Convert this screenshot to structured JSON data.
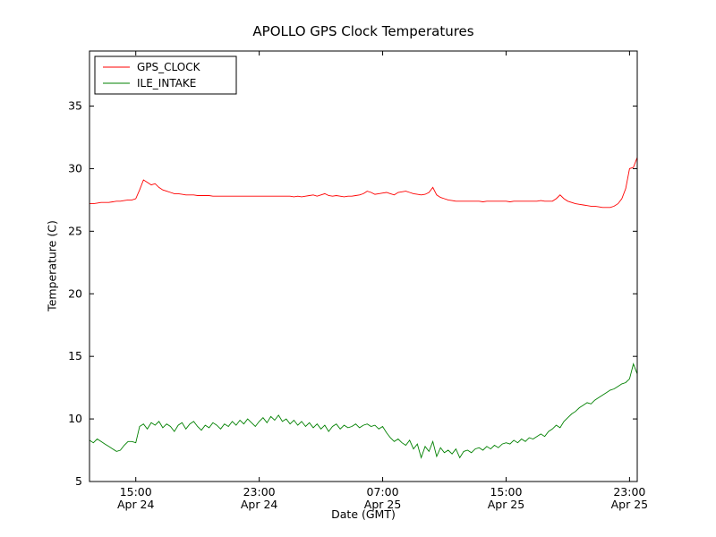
{
  "chart_data": {
    "type": "line",
    "title": "APOLLO GPS Clock Temperatures",
    "xlabel": "Date (GMT)",
    "ylabel": "Temperature (C)",
    "ylim": [
      5,
      39.4
    ],
    "xlim_hours": [
      0,
      35.5
    ],
    "x_axis_note": "hours since Apr 24 12:00 GMT",
    "grid": false,
    "legend_position": "upper left",
    "yticks": [
      5,
      10,
      15,
      20,
      25,
      30,
      35
    ],
    "xticks": [
      {
        "t": 3,
        "time": "15:00",
        "date": "Apr 24"
      },
      {
        "t": 11,
        "time": "23:00",
        "date": "Apr 24"
      },
      {
        "t": 19,
        "time": "07:00",
        "date": "Apr 25"
      },
      {
        "t": 27,
        "time": "15:00",
        "date": "Apr 25"
      },
      {
        "t": 35,
        "time": "23:00",
        "date": "Apr 25"
      }
    ],
    "series": [
      {
        "name": "GPS_CLOCK",
        "color": "#ff0000",
        "t_start": 0,
        "t_step": 0.25,
        "values": [
          27.2,
          27.2,
          27.25,
          27.3,
          27.3,
          27.3,
          27.35,
          27.4,
          27.4,
          27.45,
          27.5,
          27.5,
          27.6,
          28.3,
          29.1,
          28.9,
          28.7,
          28.8,
          28.5,
          28.3,
          28.2,
          28.1,
          28.0,
          28.0,
          27.95,
          27.9,
          27.9,
          27.9,
          27.85,
          27.85,
          27.85,
          27.85,
          27.8,
          27.8,
          27.8,
          27.8,
          27.8,
          27.8,
          27.8,
          27.8,
          27.8,
          27.8,
          27.8,
          27.8,
          27.8,
          27.8,
          27.8,
          27.8,
          27.8,
          27.8,
          27.8,
          27.8,
          27.8,
          27.75,
          27.8,
          27.75,
          27.8,
          27.85,
          27.9,
          27.8,
          27.9,
          28.0,
          27.85,
          27.8,
          27.85,
          27.8,
          27.75,
          27.8,
          27.8,
          27.85,
          27.9,
          28.0,
          28.2,
          28.1,
          27.95,
          28.0,
          28.05,
          28.1,
          28.0,
          27.9,
          28.1,
          28.15,
          28.2,
          28.1,
          28.0,
          27.95,
          27.9,
          27.95,
          28.1,
          28.5,
          27.9,
          27.7,
          27.6,
          27.5,
          27.45,
          27.4,
          27.4,
          27.4,
          27.4,
          27.4,
          27.4,
          27.4,
          27.35,
          27.4,
          27.4,
          27.4,
          27.4,
          27.4,
          27.4,
          27.35,
          27.4,
          27.4,
          27.4,
          27.4,
          27.4,
          27.4,
          27.4,
          27.45,
          27.4,
          27.4,
          27.4,
          27.6,
          27.9,
          27.6,
          27.4,
          27.3,
          27.2,
          27.15,
          27.1,
          27.05,
          27.0,
          27.0,
          26.95,
          26.9,
          26.9,
          26.9,
          27.0,
          27.2,
          27.6,
          28.4,
          30.0,
          30.1,
          30.9
        ]
      },
      {
        "name": "ILE_INTAKE",
        "color": "#008000",
        "t_start": 0,
        "t_step": 0.25,
        "values": [
          8.3,
          8.1,
          8.4,
          8.2,
          8.0,
          7.8,
          7.6,
          7.4,
          7.5,
          7.9,
          8.2,
          8.2,
          8.1,
          9.4,
          9.6,
          9.2,
          9.7,
          9.5,
          9.8,
          9.3,
          9.6,
          9.4,
          9.0,
          9.5,
          9.7,
          9.2,
          9.6,
          9.8,
          9.4,
          9.1,
          9.5,
          9.3,
          9.7,
          9.5,
          9.2,
          9.6,
          9.4,
          9.8,
          9.5,
          9.9,
          9.6,
          10.0,
          9.7,
          9.4,
          9.8,
          10.1,
          9.7,
          10.2,
          9.9,
          10.3,
          9.8,
          10.0,
          9.6,
          9.9,
          9.5,
          9.8,
          9.4,
          9.7,
          9.3,
          9.6,
          9.2,
          9.5,
          9.0,
          9.4,
          9.6,
          9.2,
          9.5,
          9.3,
          9.4,
          9.6,
          9.3,
          9.5,
          9.6,
          9.4,
          9.5,
          9.2,
          9.4,
          8.9,
          8.5,
          8.2,
          8.4,
          8.1,
          7.9,
          8.3,
          7.6,
          8.0,
          6.9,
          7.8,
          7.4,
          8.2,
          7.0,
          7.7,
          7.3,
          7.5,
          7.2,
          7.6,
          6.9,
          7.4,
          7.5,
          7.3,
          7.6,
          7.7,
          7.5,
          7.8,
          7.6,
          7.9,
          7.7,
          8.0,
          8.1,
          8.0,
          8.3,
          8.1,
          8.4,
          8.2,
          8.5,
          8.4,
          8.6,
          8.8,
          8.6,
          9.0,
          9.2,
          9.5,
          9.3,
          9.8,
          10.1,
          10.4,
          10.6,
          10.9,
          11.1,
          11.3,
          11.2,
          11.5,
          11.7,
          11.9,
          12.1,
          12.3,
          12.4,
          12.6,
          12.8,
          12.9,
          13.2,
          14.4,
          13.6
        ]
      }
    ]
  }
}
